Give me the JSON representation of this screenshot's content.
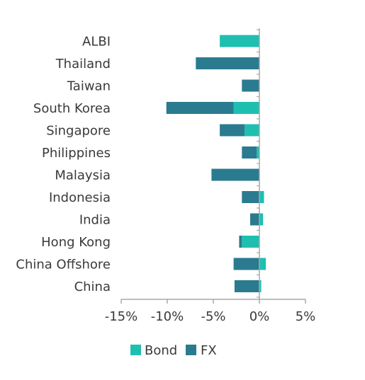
{
  "chart_data": {
    "type": "bar",
    "orientation": "horizontal",
    "stacked": true,
    "categories": [
      "ALBI",
      "Thailand",
      "Taiwan",
      "South Korea",
      "Singapore",
      "Philippines",
      "Malaysia",
      "Indonesia",
      "India",
      "Hong Kong",
      "China Offshore",
      "China"
    ],
    "series": [
      {
        "name": "Bond",
        "color": "#1fbfb0",
        "values": [
          -4.3,
          0.0,
          0.0,
          -2.8,
          -1.6,
          -0.3,
          0.0,
          0.5,
          0.4,
          -1.9,
          0.7,
          0.2
        ]
      },
      {
        "name": "FX",
        "color": "#2a7b8f",
        "values": [
          0.0,
          -6.9,
          -1.9,
          -7.3,
          -2.7,
          -1.6,
          -5.2,
          -1.9,
          -1.0,
          -0.3,
          -2.8,
          -2.7
        ]
      }
    ],
    "xlim": [
      -15,
      5
    ],
    "xticks": [
      "-15%",
      "-10%",
      "-5%",
      "0%",
      "5%"
    ],
    "xtick_values": [
      -15,
      -10,
      -5,
      0,
      5
    ],
    "legend": {
      "position": "bottom",
      "entries": [
        "Bond",
        "FX"
      ]
    },
    "grid": false,
    "axis_color": "#a8a8a8"
  }
}
